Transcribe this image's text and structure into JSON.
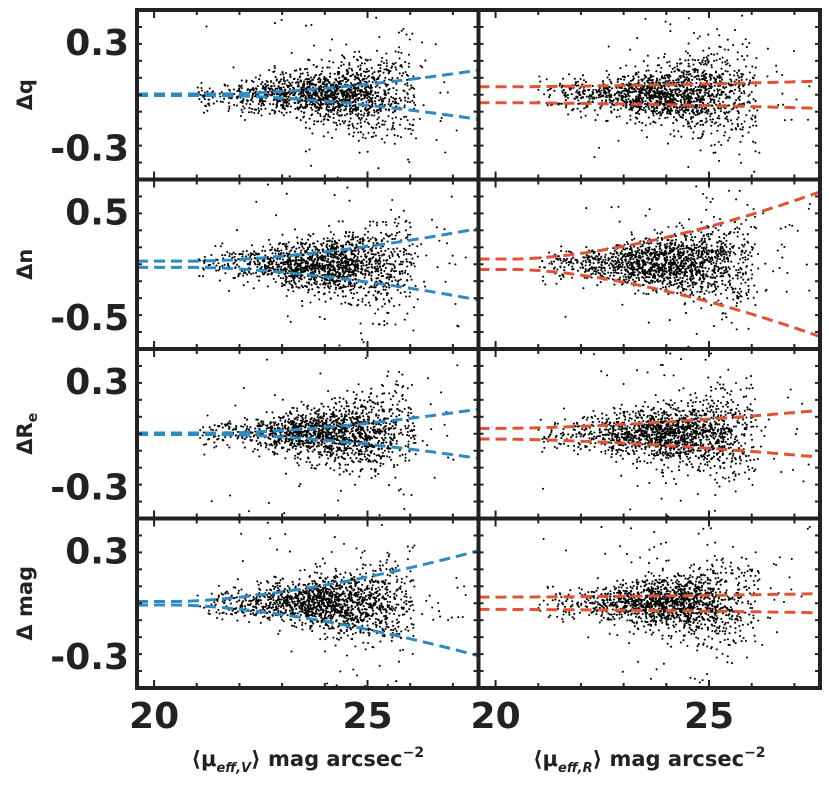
{
  "chart_data": {
    "type": "scatter",
    "layout": "4 rows x 2 columns",
    "x_range": [
      19.6,
      27.6
    ],
    "x_ticks": [
      20,
      25
    ],
    "x_tick_labels": [
      "20",
      "25"
    ],
    "columns": [
      {
        "key": "V",
        "band": "V",
        "xlabel_prefix": "⟨μ",
        "xlabel_sub": "eff,V",
        "xlabel_suffix": "⟩ mag arcsec",
        "xlabel_sup": "−2",
        "curve_color": "#2e8bc0"
      },
      {
        "key": "R",
        "band": "R",
        "xlabel_prefix": "⟨μ",
        "xlabel_sub": "eff,R",
        "xlabel_suffix": "⟩ mag arcsec",
        "xlabel_sup": "−2",
        "curve_color": "#e0533a"
      }
    ],
    "rows": [
      {
        "key": "q",
        "ylabel": "Δq",
        "ylabel_sub": "",
        "ylim": [
          -0.48,
          0.48
        ],
        "yticks": [
          -0.3,
          0.3
        ],
        "ytick_labels": [
          "-0.3",
          "0.3"
        ],
        "scatter_base": 0.045,
        "scatter_growth": 0.13,
        "envelope": {
          "V": {
            "a": 0.004,
            "b": 0.03,
            "x0": 21.5
          },
          "R": {
            "a": 0.045,
            "b": 0.005,
            "x0": 20.0
          }
        }
      },
      {
        "key": "n",
        "ylabel": "Δn",
        "ylabel_sub": "",
        "ylim": [
          -0.8,
          0.8
        ],
        "yticks": [
          -0.5,
          0.5
        ],
        "ytick_labels": [
          "-0.5",
          "0.5"
        ],
        "scatter_base": 0.08,
        "scatter_growth": 0.2,
        "envelope": {
          "V": {
            "a": 0.03,
            "b": 0.06,
            "x0": 21.0
          },
          "R": {
            "a": 0.05,
            "b": 0.11,
            "x0": 20.5
          }
        }
      },
      {
        "key": "Re",
        "ylabel": "ΔR",
        "ylabel_sub": "e",
        "ylim": [
          -0.48,
          0.48
        ],
        "yticks": [
          -0.3,
          0.3
        ],
        "ytick_labels": [
          "-0.3",
          "0.3"
        ],
        "scatter_base": 0.05,
        "scatter_growth": 0.12,
        "envelope": {
          "V": {
            "a": 0.004,
            "b": 0.03,
            "x0": 21.5
          },
          "R": {
            "a": 0.03,
            "b": 0.016,
            "x0": 20.0
          }
        }
      },
      {
        "key": "mag",
        "ylabel": "Δ mag",
        "ylabel_sub": "",
        "ylim": [
          -0.48,
          0.48
        ],
        "yticks": [
          -0.3,
          0.3
        ],
        "ytick_labels": [
          "-0.3",
          "0.3"
        ],
        "scatter_base": 0.05,
        "scatter_growth": 0.11,
        "envelope": {
          "V": {
            "a": 0.01,
            "b": 0.05,
            "x0": 20.5
          },
          "R": {
            "a": 0.035,
            "b": 0.003,
            "x0": 20.0
          }
        }
      }
    ],
    "scatter_points_per_panel": 1600,
    "scatter_x_range": [
      21.0,
      27.4
    ],
    "scatter_x_peak": 24.2,
    "grid": false,
    "legend": "none"
  }
}
